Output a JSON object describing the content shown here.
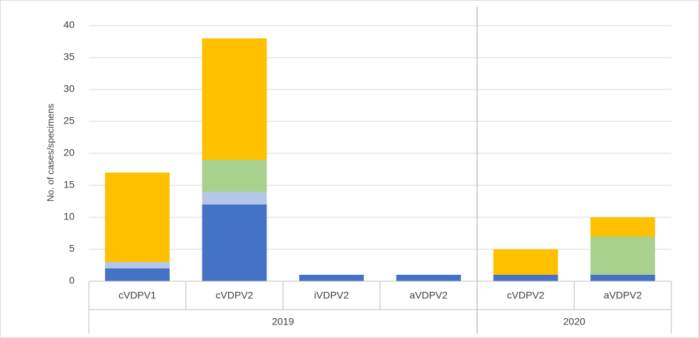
{
  "chart_data": {
    "type": "stacked_bar",
    "y_axis_label": "No. of cases/specimens",
    "categories": [
      "cVDPV1",
      "cVDPV2",
      "iVDPV2",
      "aVDPV2",
      "cVDPV2",
      "aVDPV2"
    ],
    "category_groups": [
      {
        "label": "2019",
        "span": 4
      },
      {
        "label": "2020",
        "span": 2
      }
    ],
    "series": [
      {
        "color": "#4472c4",
        "values": [
          2,
          12,
          1,
          1,
          1,
          1
        ]
      },
      {
        "color": "#b4c7e7",
        "values": [
          1,
          2,
          0,
          0,
          0,
          0
        ]
      },
      {
        "color": "#a9d18e",
        "values": [
          0,
          5,
          0,
          0,
          0,
          6
        ]
      },
      {
        "color": "#ffc000",
        "values": [
          14,
          19,
          0,
          0,
          4,
          3
        ]
      }
    ],
    "ylim": [
      0,
      40
    ],
    "yticks": [
      0,
      5,
      10,
      15,
      20,
      25,
      30,
      35,
      40
    ],
    "grid": true
  }
}
